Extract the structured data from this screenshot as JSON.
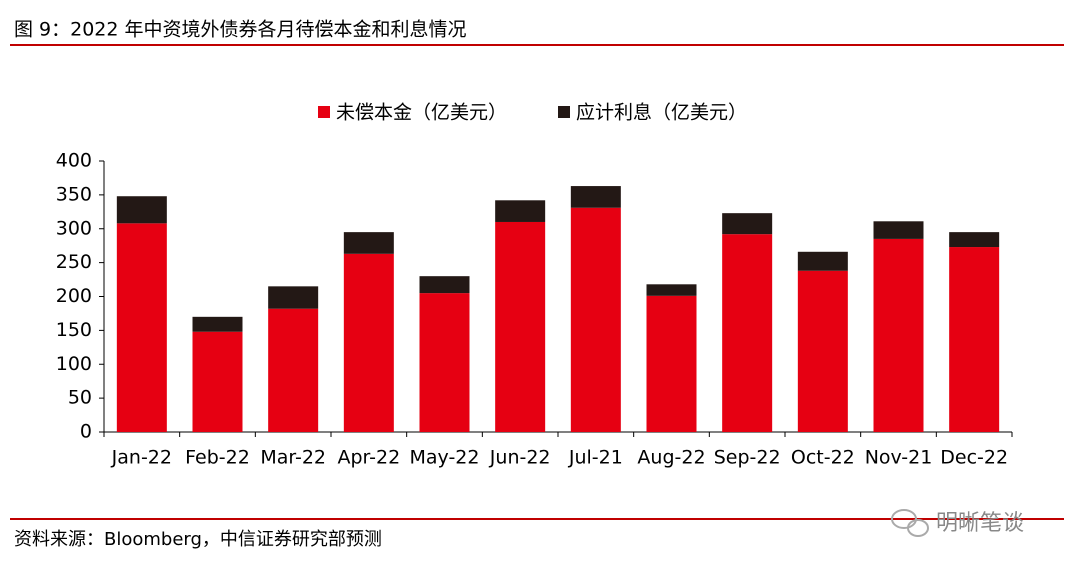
{
  "header": {
    "title": "图 9：2022 年中资境外债券各月待偿本金和利息情况"
  },
  "chart_data": {
    "type": "stacked_bar",
    "categories": [
      "Jan-22",
      "Feb-22",
      "Mar-22",
      "Apr-22",
      "May-22",
      "Jun-22",
      "Jul-21",
      "Aug-22",
      "Sep-22",
      "Oct-22",
      "Nov-21",
      "Dec-22"
    ],
    "series": [
      {
        "name": "未偿本金（亿美元）",
        "color": "#e60012",
        "values": [
          308,
          148,
          182,
          263,
          205,
          310,
          331,
          201,
          292,
          238,
          285,
          273
        ]
      },
      {
        "name": "应计利息（亿美元）",
        "color": "#231815",
        "values": [
          40,
          22,
          33,
          32,
          25,
          32,
          32,
          17,
          31,
          28,
          26,
          22
        ]
      }
    ],
    "ylim": [
      0,
      400
    ],
    "yticks": [
      0,
      50,
      100,
      150,
      200,
      250,
      300,
      350,
      400
    ],
    "legend": "top"
  },
  "footer": {
    "source": "资料来源：Bloomberg，中信证券研究部预测",
    "watermark": "明晰笔谈"
  }
}
